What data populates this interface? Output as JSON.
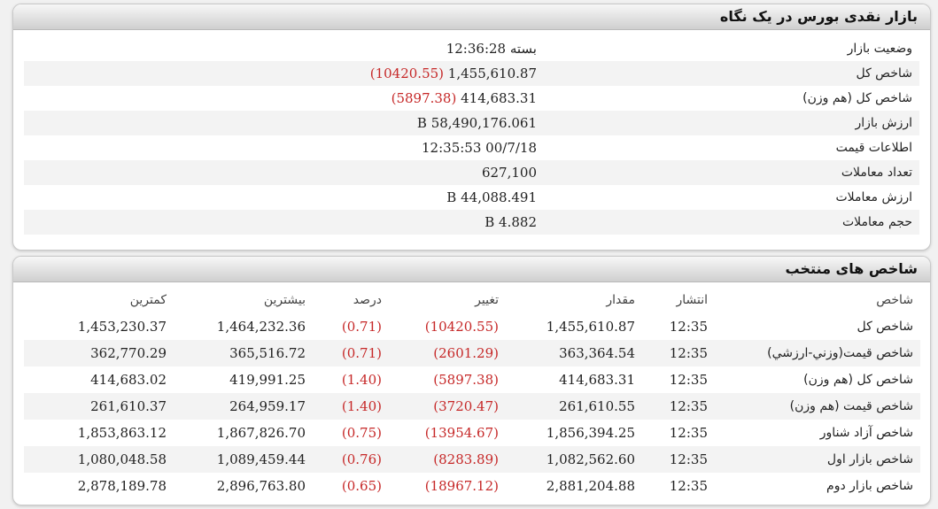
{
  "panel1": {
    "title": "بازار نقدی بورس در یک نگاه",
    "rows": [
      {
        "label": "وضعیت بازار",
        "value": "بسته 12:36:28",
        "change": ""
      },
      {
        "label": "شاخص کل",
        "value": "1,455,610.87",
        "change": "(10420.55)"
      },
      {
        "label": "شاخص کل (هم وزن)",
        "value": "414,683.31",
        "change": "(5897.38)"
      },
      {
        "label": "ارزش بازار",
        "value": "58,490,176.061 B",
        "change": ""
      },
      {
        "label": "اطلاعات قیمت",
        "value": "00/7/18 12:35:53",
        "change": ""
      },
      {
        "label": "تعداد معاملات",
        "value": "627,100",
        "change": ""
      },
      {
        "label": "ارزش معاملات",
        "value": "44,088.491 B",
        "change": ""
      },
      {
        "label": "حجم معاملات",
        "value": "4.882 B",
        "change": ""
      }
    ]
  },
  "panel2": {
    "title": "شاخص های منتخب",
    "headers": {
      "name": "شاخص",
      "time": "انتشار",
      "value": "مقدار",
      "change": "تغییر",
      "percent": "درصد",
      "max": "بیشترین",
      "min": "کمترین"
    },
    "rows": [
      {
        "name": "شاخص كل",
        "time": "12:35",
        "value": "1,455,610.87",
        "change": "(10420.55)",
        "percent": "(0.71)",
        "max": "1,464,232.36",
        "min": "1,453,230.37"
      },
      {
        "name": "شاخص قيمت(وزني-ارزشي)",
        "time": "12:35",
        "value": "363,364.54",
        "change": "(2601.29)",
        "percent": "(0.71)",
        "max": "365,516.72",
        "min": "362,770.29"
      },
      {
        "name": "شاخص کل (هم وزن)",
        "time": "12:35",
        "value": "414,683.31",
        "change": "(5897.38)",
        "percent": "(1.40)",
        "max": "419,991.25",
        "min": "414,683.02"
      },
      {
        "name": "شاخص قیمت (هم وزن)",
        "time": "12:35",
        "value": "261,610.55",
        "change": "(3720.47)",
        "percent": "(1.40)",
        "max": "264,959.17",
        "min": "261,610.37"
      },
      {
        "name": "شاخص آزاد شناور",
        "time": "12:35",
        "value": "1,856,394.25",
        "change": "(13954.67)",
        "percent": "(0.75)",
        "max": "1,867,826.70",
        "min": "1,853,863.12"
      },
      {
        "name": "شاخص بازار اول",
        "time": "12:35",
        "value": "1,082,562.60",
        "change": "(8283.89)",
        "percent": "(0.76)",
        "max": "1,089,459.44",
        "min": "1,080,048.58"
      },
      {
        "name": "شاخص بازار دوم",
        "time": "12:35",
        "value": "2,881,204.88",
        "change": "(18967.12)",
        "percent": "(0.65)",
        "max": "2,896,763.80",
        "min": "2,878,189.78"
      }
    ]
  },
  "colors": {
    "negative": "#c62828",
    "header_bg": "#cfcfcf",
    "row_alt": "#f3f3f3"
  }
}
